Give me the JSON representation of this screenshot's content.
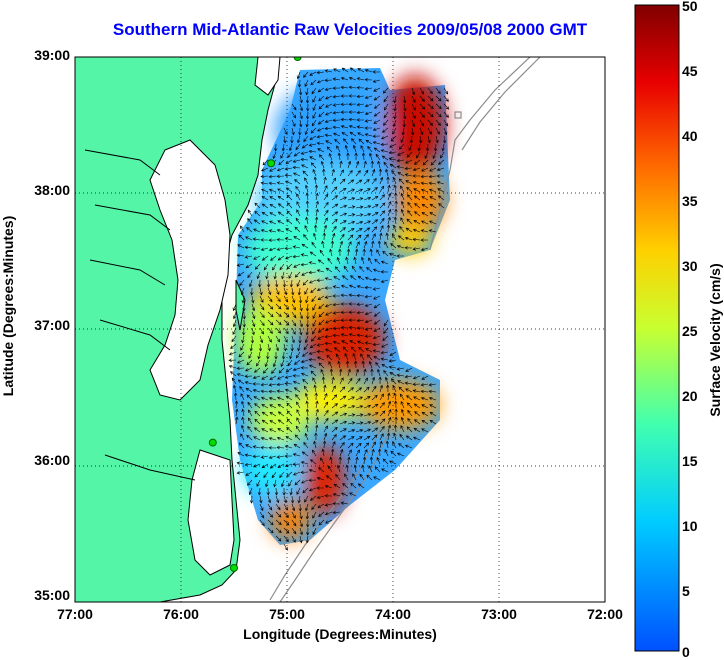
{
  "title": "Southern Mid-Atlantic Raw Velocities 2009/05/08 2000 GMT",
  "axes": {
    "xlabel": "Longitude (Degrees:Minutes)",
    "ylabel": "Latitude (Degrees:Minutes)",
    "x_ticks": [
      "77:00",
      "76:00",
      "75:00",
      "74:00",
      "73:00",
      "72:00"
    ],
    "y_ticks": [
      "39:00",
      "38:00",
      "37:00",
      "36:00",
      "35:00"
    ],
    "lon_range": [
      -77,
      -72
    ],
    "lat_range": [
      35,
      39
    ],
    "grid": "dotted"
  },
  "colorbar": {
    "label": "Surface Velocity (cm/s)",
    "ticks": [
      "50",
      "45",
      "40",
      "35",
      "30",
      "25",
      "20",
      "15",
      "10",
      "5",
      "0"
    ],
    "range": [
      0,
      50
    ],
    "colormap": "jet"
  },
  "colors": {
    "land": "#55f5a8",
    "coast": "#000000",
    "bathymetry": "#8c8c8c",
    "title": "#0000ff",
    "station_marker": "#00dd00"
  },
  "map_layers": [
    "land",
    "coastline",
    "bathymetry-contours",
    "velocity-field",
    "velocity-vectors",
    "hf-radar-stations"
  ],
  "stations": [
    {
      "lon": -74.9,
      "lat": 39.0
    },
    {
      "lon": -75.15,
      "lat": 38.22
    },
    {
      "lon": -75.7,
      "lat": 36.17
    },
    {
      "lon": -75.5,
      "lat": 35.25
    }
  ]
}
